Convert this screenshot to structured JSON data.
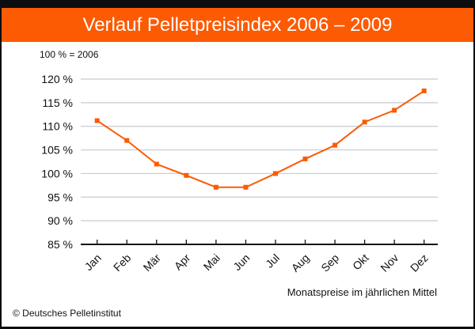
{
  "chart_data": {
    "type": "line",
    "title": "Verlauf Pelletpreisindex 2006 – 2009",
    "subtitle": "100 % = 2006",
    "xlabel": "Monatspreise im jährlichen Mittel",
    "ylabel": "",
    "categories": [
      "Jan",
      "Feb",
      "Mär",
      "Apr",
      "Mai",
      "Jun",
      "Jul",
      "Aug",
      "Sep",
      "Okt",
      "Nov",
      "Dez"
    ],
    "values": [
      111.2,
      107.0,
      102.0,
      99.6,
      97.1,
      97.1,
      100.0,
      103.1,
      106.0,
      110.9,
      113.4,
      117.5
    ],
    "ylim": [
      85,
      120
    ],
    "yticks": [
      "85 %",
      "90 %",
      "95 %",
      "100 %",
      "105 %",
      "110 %",
      "115 %",
      "120 %"
    ],
    "ytick_values": [
      85,
      90,
      95,
      100,
      105,
      110,
      115,
      120
    ],
    "grid": true,
    "legend": "none",
    "colors": {
      "line": "#fc5a03",
      "header": "#fc5a03",
      "grid": "#c5ccd3"
    }
  },
  "footer": {
    "copyright": "© Deutsches Pelletinstitut"
  }
}
